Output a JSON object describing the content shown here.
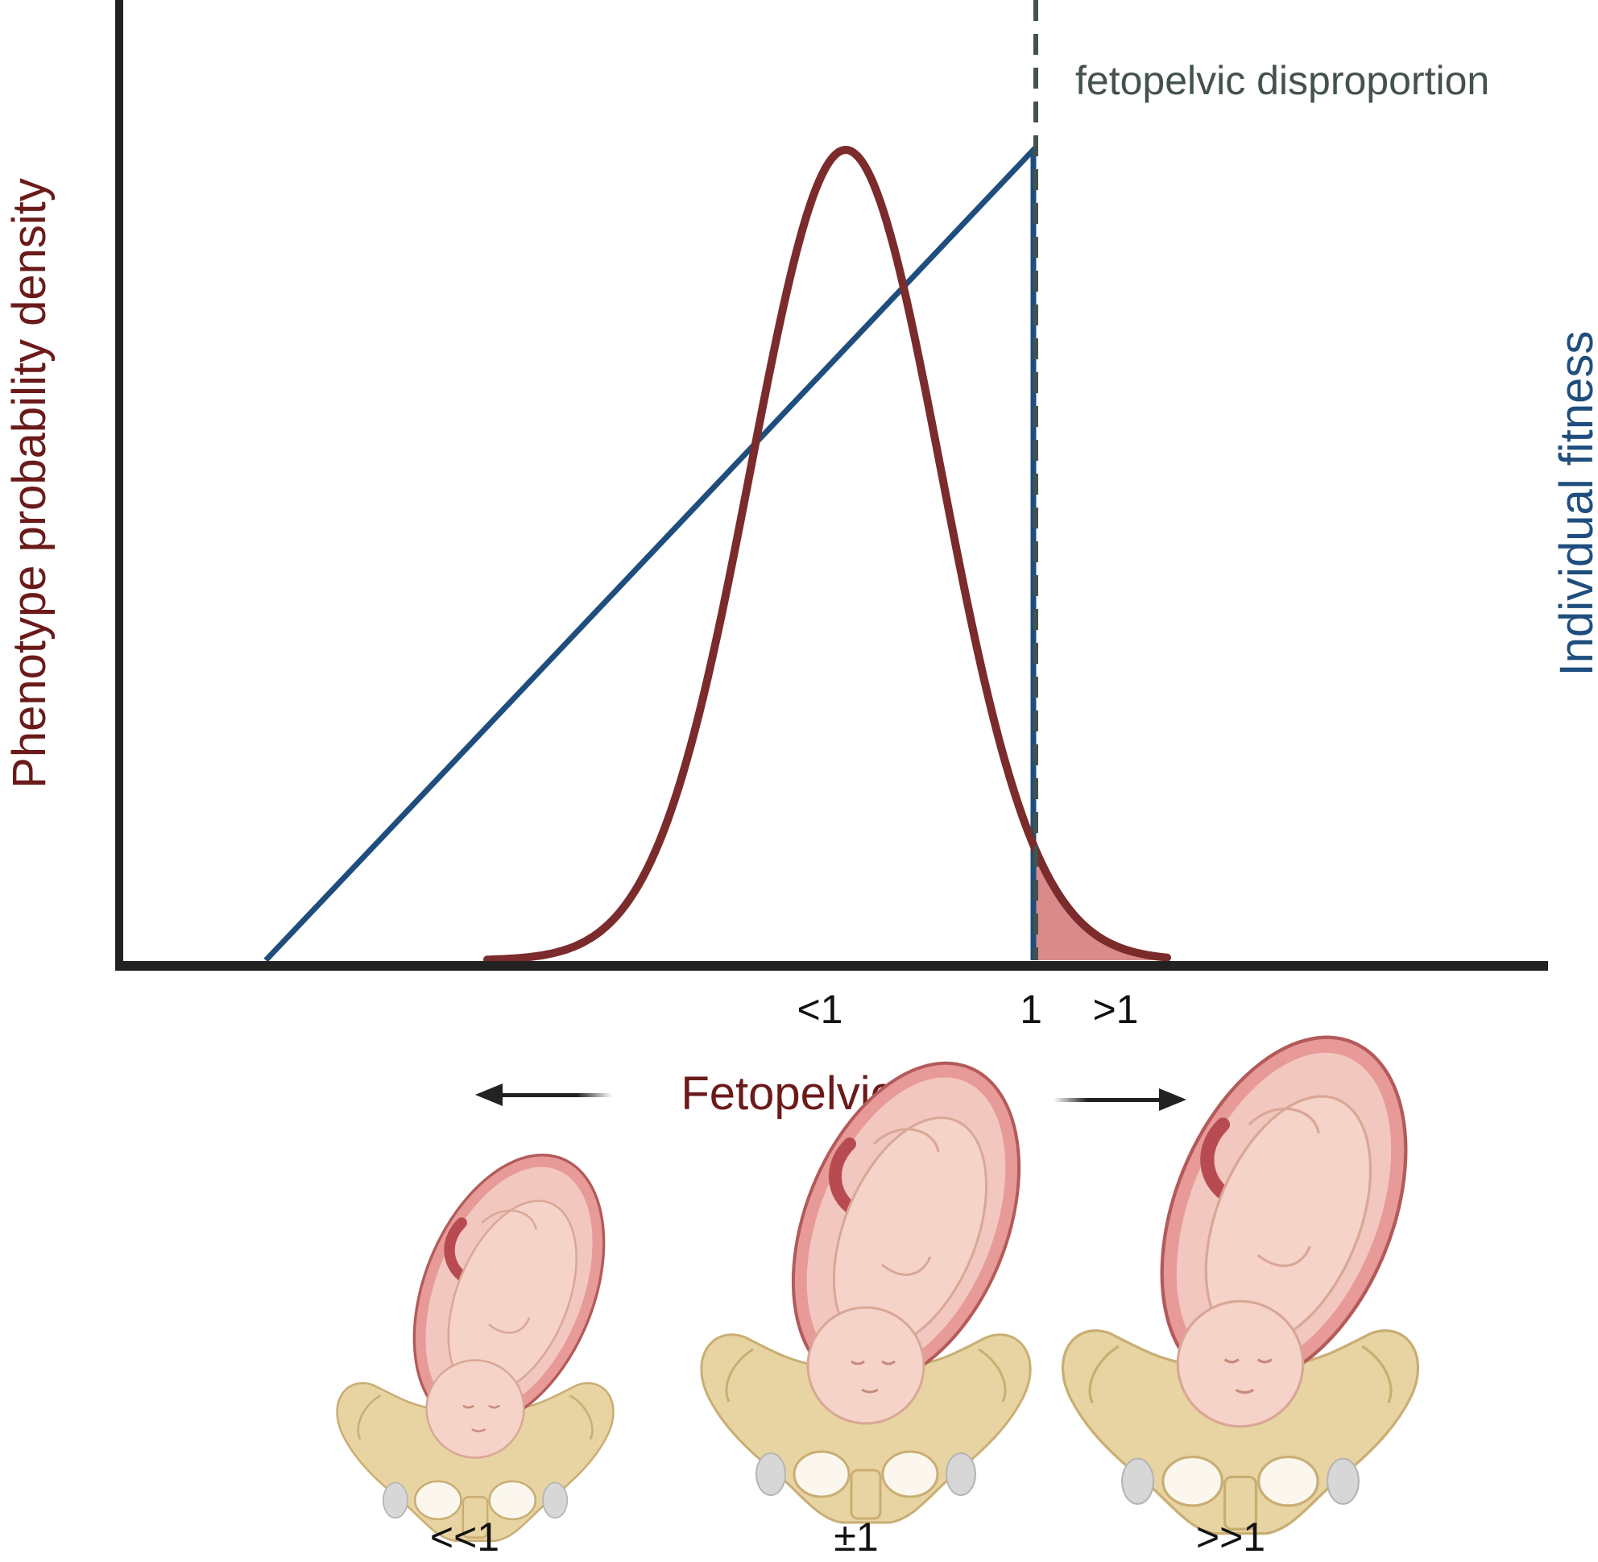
{
  "labels": {
    "y_left": "Phenotype probability density",
    "y_right": "Individual fitness",
    "x_axis": "Fetopelvic ratio",
    "threshold": "fetopelvic disproportion"
  },
  "ticks": {
    "below_one": "<1",
    "one": "1",
    "above_one": ">1"
  },
  "illustrations": [
    {
      "label": "<<1"
    },
    {
      "label": "±1"
    },
    {
      "label": ">>1"
    }
  ],
  "colors": {
    "density_curve": "#7b2b2b",
    "fitness_line": "#1f4e7e",
    "disproportion_fill": "#d98a8a",
    "threshold_line": "#44524c",
    "axis": "#222222",
    "axis_label": "#6b1a1a",
    "fitness_label": "#1f4e7e",
    "tick_text": "#111111"
  },
  "icons": [
    "arrow-left-icon",
    "arrow-right-icon",
    "pregnant-uterus-pelvis-icon"
  ]
}
